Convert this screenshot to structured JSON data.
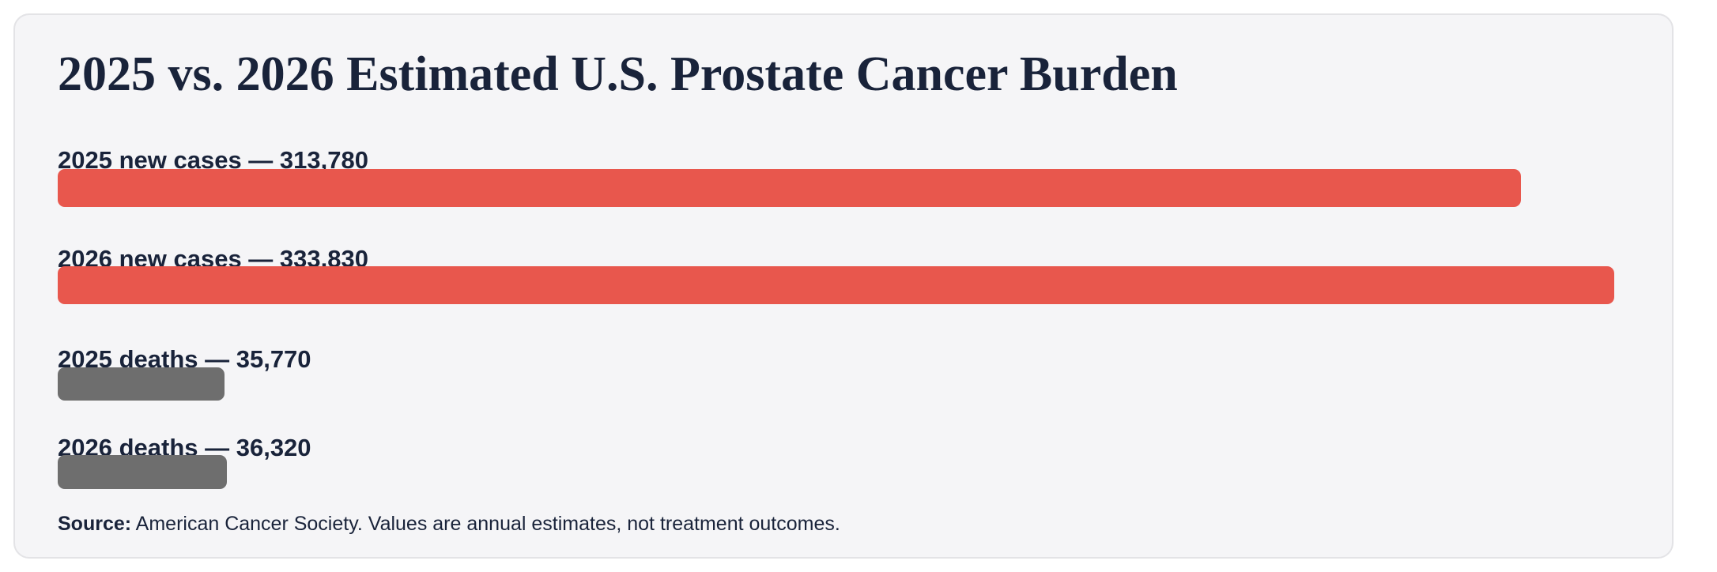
{
  "chart_data": {
    "type": "bar",
    "orientation": "horizontal",
    "title": "2025 vs. 2026 Estimated U.S. Prostate Cancer Burden",
    "categories": [
      "2025 new cases",
      "2026 new cases",
      "2025 deaths",
      "2026 deaths"
    ],
    "values": [
      313780,
      333830,
      35770,
      36320
    ],
    "labels": [
      "2025 new cases — 313,780",
      "2026 new cases — 333,830",
      "2025 deaths — 35,770",
      "2026 deaths — 36,320"
    ],
    "colors": [
      "#e8574d",
      "#e8574d",
      "#6e6e6e",
      "#6e6e6e"
    ],
    "xlim": [
      0,
      333830
    ],
    "grid": false,
    "legend": "none",
    "source_label": "Source:",
    "source_text": " American Cancer Society. Values are annual estimates, not treatment outcomes."
  }
}
